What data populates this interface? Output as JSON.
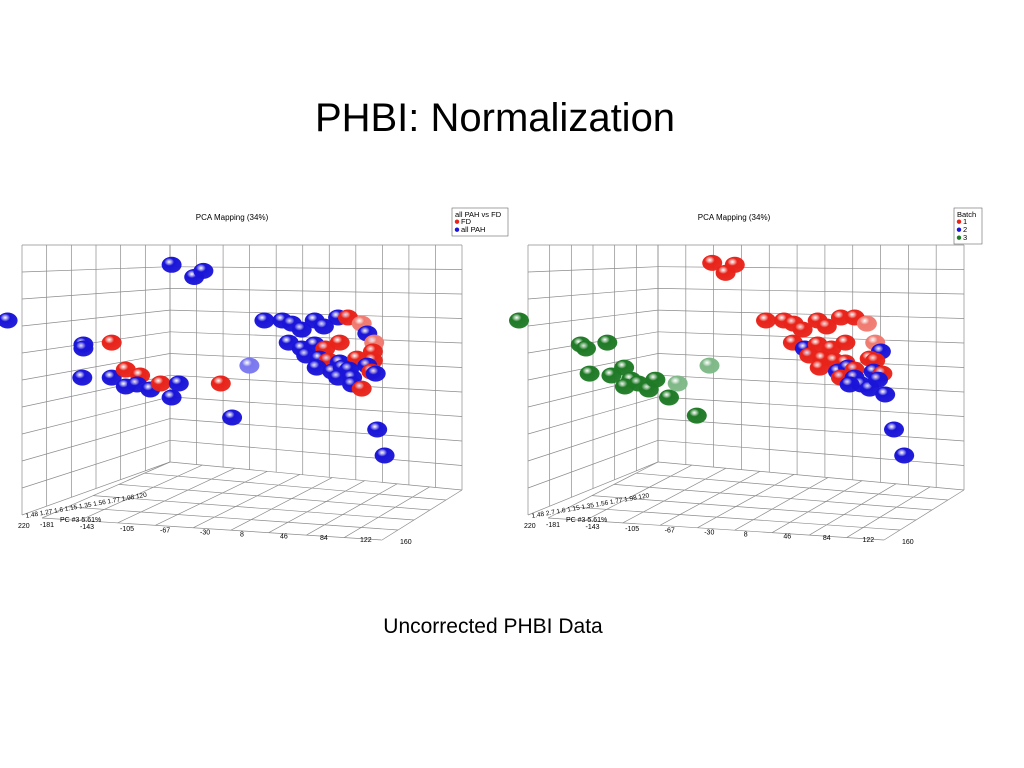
{
  "slide": {
    "title": "PHBI: Normalization",
    "caption": "Uncorrected PHBI Data"
  },
  "colors": {
    "red": "#e8231a",
    "blue": "#1a14d8",
    "green": "#1f7a26",
    "grid": "#8c8c8c",
    "light_red": "#f07a70",
    "light_blue": "#7a78ee",
    "light_green": "#7fb887"
  },
  "chart_data": [
    {
      "type": "scatter",
      "title": "PCA Mapping (34%)",
      "legend": {
        "title": "all PAH vs FD",
        "placement": "top-right",
        "entries": [
          {
            "label": "FD",
            "color": "red"
          },
          {
            "label": "all PAH",
            "color": "blue"
          }
        ]
      },
      "axis_x_ticks": [
        "-181",
        "-143",
        "-105",
        "-67",
        "-30",
        "8",
        "46",
        "84",
        "122",
        "160"
      ],
      "axis_x_first_tick": "220",
      "axis_z_label": "PC #3 5.61%",
      "axis_z_ticks_text": "1.48  1.27  1.6  1.15  1.35  1.56  1.77  1.98 120",
      "points": [
        {
          "x": -60.1,
          "y": 97.4,
          "c": "blue"
        },
        {
          "x": -38.7,
          "y": 86.1,
          "c": "blue"
        },
        {
          "x": -30.0,
          "y": 91.8,
          "c": "blue"
        },
        {
          "x": -215.5,
          "y": 45.8,
          "c": "blue"
        },
        {
          "x": -143.7,
          "y": 23.6,
          "c": "blue"
        },
        {
          "x": -143.7,
          "y": 19.9,
          "c": "blue"
        },
        {
          "x": -116.9,
          "y": 25.4,
          "c": "red"
        },
        {
          "x": -144.7,
          "y": -7.0,
          "c": "blue"
        },
        {
          "x": -116.9,
          "y": -7.0,
          "c": "blue"
        },
        {
          "x": -103.5,
          "y": 0.4,
          "c": "red"
        },
        {
          "x": -90.0,
          "y": -5.1,
          "c": "red"
        },
        {
          "x": -103.5,
          "y": -15.3,
          "c": "blue"
        },
        {
          "x": -92.9,
          "y": -13.4,
          "c": "blue"
        },
        {
          "x": -80.3,
          "y": -18.1,
          "c": "blue"
        },
        {
          "x": -70.6,
          "y": -12.5,
          "c": "red"
        },
        {
          "x": -60.1,
          "y": -25.5,
          "c": "blue"
        },
        {
          "x": -53.3,
          "y": -12.5,
          "c": "blue"
        },
        {
          "x": -13.5,
          "y": -12.5,
          "c": "red"
        },
        {
          "x": -2.8,
          "y": -44.0,
          "c": "blue"
        },
        {
          "x": 13.6,
          "y": 4.1,
          "c": "light-blue"
        },
        {
          "x": 27.8,
          "y": 45.8,
          "c": "blue"
        },
        {
          "x": 44.8,
          "y": 45.8,
          "c": "blue"
        },
        {
          "x": 53.8,
          "y": 43.0,
          "c": "blue"
        },
        {
          "x": 63.1,
          "y": 37.4,
          "c": "blue"
        },
        {
          "x": 75.4,
          "y": 45.8,
          "c": "blue"
        },
        {
          "x": 84.1,
          "y": 40.3,
          "c": "blue"
        },
        {
          "x": 97.6,
          "y": 48.6,
          "c": "blue"
        },
        {
          "x": 107.0,
          "y": 48.6,
          "c": "red"
        },
        {
          "x": 119.9,
          "y": 43.0,
          "c": "light-red"
        },
        {
          "x": 125.2,
          "y": 33.8,
          "c": "blue"
        },
        {
          "x": 50.8,
          "y": 25.4,
          "c": "blue"
        },
        {
          "x": 63.1,
          "y": 19.9,
          "c": "blue"
        },
        {
          "x": 75.4,
          "y": 23.6,
          "c": "blue"
        },
        {
          "x": 85.5,
          "y": 19.9,
          "c": "red"
        },
        {
          "x": 99.1,
          "y": 25.4,
          "c": "red"
        },
        {
          "x": 131.8,
          "y": 25.4,
          "c": "light-red"
        },
        {
          "x": 130.5,
          "y": 17.1,
          "c": "red"
        },
        {
          "x": 67.4,
          "y": 13.4,
          "c": "blue"
        },
        {
          "x": 79.8,
          "y": 10.6,
          "c": "blue"
        },
        {
          "x": 88.5,
          "y": 8.7,
          "c": "red"
        },
        {
          "x": 99.1,
          "y": 6.9,
          "c": "blue"
        },
        {
          "x": 115.5,
          "y": 10.6,
          "c": "red"
        },
        {
          "x": 130.5,
          "y": 8.7,
          "c": "red"
        },
        {
          "x": 125.2,
          "y": 4.1,
          "c": "blue"
        },
        {
          "x": 77.3,
          "y": 2.2,
          "c": "blue"
        },
        {
          "x": 92.1,
          "y": -1.5,
          "c": "blue"
        },
        {
          "x": 102.0,
          "y": 2.2,
          "c": "blue"
        },
        {
          "x": 107.9,
          "y": 0.4,
          "c": "blue"
        },
        {
          "x": 129.1,
          "y": -1.5,
          "c": "red"
        },
        {
          "x": 133.2,
          "y": -3.3,
          "c": "blue"
        },
        {
          "x": 97.6,
          "y": -7.0,
          "c": "blue"
        },
        {
          "x": 110.8,
          "y": -7.0,
          "c": "blue"
        },
        {
          "x": 110.8,
          "y": -13.4,
          "c": "blue"
        },
        {
          "x": 119.9,
          "y": -17.2,
          "c": "red"
        },
        {
          "x": 134.6,
          "y": -55.1,
          "c": "blue"
        },
        {
          "x": 141.6,
          "y": -79.2,
          "c": "blue"
        }
      ]
    },
    {
      "type": "scatter",
      "title": "PCA Mapping (34%)",
      "legend": {
        "title": "Batch",
        "placement": "top-right",
        "entries": [
          {
            "label": "1",
            "color": "red"
          },
          {
            "label": "2",
            "color": "blue"
          },
          {
            "label": "3",
            "color": "green"
          }
        ]
      },
      "axis_x_ticks": [
        "-181",
        "-143",
        "-105",
        "-67",
        "-30",
        "8",
        "46",
        "84",
        "122",
        "160"
      ],
      "axis_x_first_tick": "220",
      "axis_z_label": "PC #3 5.61%",
      "axis_z_ticks_text": "1.48  2.7  1.6  1.15  1.35  1.56  1.77  1.98 120",
      "points": [
        {
          "x": -25.6,
          "y": 99.2,
          "c": "red"
        },
        {
          "x": -4.0,
          "y": 97.4,
          "c": "red"
        },
        {
          "x": -12.8,
          "y": 89.9,
          "c": "red"
        },
        {
          "x": -210.7,
          "y": 45.8,
          "c": "green"
        },
        {
          "x": -151.5,
          "y": 23.6,
          "c": "green"
        },
        {
          "x": -146.5,
          "y": 19.9,
          "c": "green"
        },
        {
          "x": -126.1,
          "y": 25.4,
          "c": "green"
        },
        {
          "x": -143.1,
          "y": -3.3,
          "c": "green"
        },
        {
          "x": -122.2,
          "y": -5.1,
          "c": "green"
        },
        {
          "x": -110.0,
          "y": 2.2,
          "c": "green"
        },
        {
          "x": -103.3,
          "y": -9.0,
          "c": "green"
        },
        {
          "x": -109.3,
          "y": -15.3,
          "c": "green"
        },
        {
          "x": -96.3,
          "y": -12.5,
          "c": "green"
        },
        {
          "x": -86.4,
          "y": -18.1,
          "c": "green"
        },
        {
          "x": -80.0,
          "y": -9.0,
          "c": "green"
        },
        {
          "x": -67.0,
          "y": -25.5,
          "c": "green"
        },
        {
          "x": -58.7,
          "y": -12.5,
          "c": "light-green"
        },
        {
          "x": -40.4,
          "y": -42.2,
          "c": "green"
        },
        {
          "x": -28.2,
          "y": 4.1,
          "c": "light-green"
        },
        {
          "x": 25.9,
          "y": 45.8,
          "c": "red"
        },
        {
          "x": 43.1,
          "y": 45.8,
          "c": "red"
        },
        {
          "x": 52.3,
          "y": 43.0,
          "c": "red"
        },
        {
          "x": 61.0,
          "y": 37.4,
          "c": "red"
        },
        {
          "x": 75.4,
          "y": 45.8,
          "c": "red"
        },
        {
          "x": 84.1,
          "y": 40.3,
          "c": "red"
        },
        {
          "x": 97.6,
          "y": 48.6,
          "c": "red"
        },
        {
          "x": 110.8,
          "y": 48.6,
          "c": "red"
        },
        {
          "x": 122.5,
          "y": 43.0,
          "c": "light-red"
        },
        {
          "x": 51.7,
          "y": 25.4,
          "c": "red"
        },
        {
          "x": 63.1,
          "y": 19.9,
          "c": "blue"
        },
        {
          "x": 75.4,
          "y": 23.6,
          "c": "red"
        },
        {
          "x": 88.5,
          "y": 19.9,
          "c": "red"
        },
        {
          "x": 102.0,
          "y": 25.4,
          "c": "red"
        },
        {
          "x": 130.5,
          "y": 25.4,
          "c": "light-red"
        },
        {
          "x": 136.0,
          "y": 17.1,
          "c": "blue"
        },
        {
          "x": 67.4,
          "y": 13.4,
          "c": "red"
        },
        {
          "x": 79.8,
          "y": 10.6,
          "c": "red"
        },
        {
          "x": 91.1,
          "y": 8.7,
          "c": "red"
        },
        {
          "x": 102.0,
          "y": 6.9,
          "c": "red"
        },
        {
          "x": 125.2,
          "y": 10.6,
          "c": "red"
        },
        {
          "x": 130.5,
          "y": 8.7,
          "c": "red"
        },
        {
          "x": 77.3,
          "y": 2.2,
          "c": "red"
        },
        {
          "x": 94.9,
          "y": -1.5,
          "c": "blue"
        },
        {
          "x": 104.5,
          "y": 2.2,
          "c": "blue"
        },
        {
          "x": 110.8,
          "y": 0.4,
          "c": "red"
        },
        {
          "x": 129.1,
          "y": -1.5,
          "c": "blue"
        },
        {
          "x": 137.4,
          "y": -3.3,
          "c": "red"
        },
        {
          "x": 97.6,
          "y": -7.0,
          "c": "red"
        },
        {
          "x": 110.8,
          "y": -7.0,
          "c": "blue"
        },
        {
          "x": 117.2,
          "y": -13.4,
          "c": "blue"
        },
        {
          "x": 125.2,
          "y": -17.2,
          "c": "blue"
        },
        {
          "x": 133.2,
          "y": -9.0,
          "c": "blue"
        },
        {
          "x": 106.0,
          "y": -13.4,
          "c": "blue"
        },
        {
          "x": 140.1,
          "y": -22.7,
          "c": "blue"
        },
        {
          "x": 148.5,
          "y": -55.1,
          "c": "blue"
        },
        {
          "x": 158.3,
          "y": -79.2,
          "c": "blue"
        }
      ]
    }
  ]
}
